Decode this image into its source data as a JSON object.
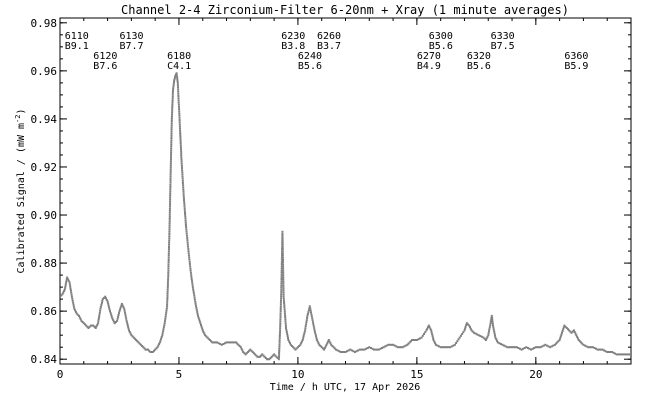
{
  "chart_data": {
    "type": "scatter",
    "title": "Channel 2-4   Zirconium-Filter   6-20nm + Xray   (1 minute averages)",
    "xlabel": "Time / h UTC, 17 Apr 2026",
    "ylabel": "Calibrated Signal / (mW m",
    "ylabel_sup": "-2",
    "ylabel_end": ")",
    "xlim": [
      0,
      24
    ],
    "ylim": [
      0.838,
      0.982
    ],
    "x_ticks": [
      {
        "value": 0,
        "label": "0"
      },
      {
        "value": 5,
        "label": "5"
      },
      {
        "value": 10,
        "label": "10"
      },
      {
        "value": 15,
        "label": "15"
      },
      {
        "value": 20,
        "label": "20"
      }
    ],
    "y_ticks": [
      {
        "value": 0.84,
        "label": "0.84"
      },
      {
        "value": 0.86,
        "label": "0.86"
      },
      {
        "value": 0.88,
        "label": "0.88"
      },
      {
        "value": 0.9,
        "label": "0.90"
      },
      {
        "value": 0.92,
        "label": "0.92"
      },
      {
        "value": 0.94,
        "label": "0.94"
      },
      {
        "value": 0.96,
        "label": "0.96"
      },
      {
        "value": 0.98,
        "label": "0.98"
      }
    ],
    "annotations": [
      {
        "x": 0.2,
        "line1": "6110",
        "line2": "B9.1",
        "row": 1
      },
      {
        "x": 1.4,
        "line1": "6120",
        "line2": "B7.6",
        "row": 2
      },
      {
        "x": 2.5,
        "line1": "6130",
        "line2": "B7.7",
        "row": 1
      },
      {
        "x": 4.5,
        "line1": "6180",
        "line2": "C4.1",
        "row": 2
      },
      {
        "x": 9.3,
        "line1": "6230",
        "line2": "B3.8",
        "row": 1
      },
      {
        "x": 10.0,
        "line1": "6240",
        "line2": "B5.6",
        "row": 2
      },
      {
        "x": 10.8,
        "line1": "6260",
        "line2": "B3.7",
        "row": 1
      },
      {
        "x": 15.0,
        "line1": "6270",
        "line2": "B4.9",
        "row": 2
      },
      {
        "x": 15.5,
        "line1": "6300",
        "line2": "B5.6",
        "row": 1
      },
      {
        "x": 17.1,
        "line1": "6320",
        "line2": "B5.6",
        "row": 2
      },
      {
        "x": 18.1,
        "line1": "6330",
        "line2": "B7.5",
        "row": 1
      },
      {
        "x": 21.2,
        "line1": "6360",
        "line2": "B5.9",
        "row": 2
      }
    ],
    "series": [
      {
        "color": "#808080",
        "points": [
          [
            0.0,
            0.866
          ],
          [
            0.1,
            0.867
          ],
          [
            0.2,
            0.869
          ],
          [
            0.3,
            0.874
          ],
          [
            0.4,
            0.872
          ],
          [
            0.5,
            0.866
          ],
          [
            0.6,
            0.861
          ],
          [
            0.7,
            0.859
          ],
          [
            0.8,
            0.858
          ],
          [
            0.9,
            0.856
          ],
          [
            1.0,
            0.855
          ],
          [
            1.1,
            0.854
          ],
          [
            1.2,
            0.853
          ],
          [
            1.3,
            0.854
          ],
          [
            1.4,
            0.854
          ],
          [
            1.5,
            0.853
          ],
          [
            1.6,
            0.855
          ],
          [
            1.7,
            0.861
          ],
          [
            1.8,
            0.865
          ],
          [
            1.9,
            0.866
          ],
          [
            2.0,
            0.864
          ],
          [
            2.1,
            0.86
          ],
          [
            2.2,
            0.857
          ],
          [
            2.3,
            0.855
          ],
          [
            2.4,
            0.856
          ],
          [
            2.5,
            0.86
          ],
          [
            2.6,
            0.863
          ],
          [
            2.7,
            0.861
          ],
          [
            2.8,
            0.856
          ],
          [
            2.9,
            0.852
          ],
          [
            3.0,
            0.85
          ],
          [
            3.1,
            0.849
          ],
          [
            3.2,
            0.848
          ],
          [
            3.3,
            0.847
          ],
          [
            3.4,
            0.846
          ],
          [
            3.5,
            0.845
          ],
          [
            3.6,
            0.844
          ],
          [
            3.7,
            0.844
          ],
          [
            3.8,
            0.843
          ],
          [
            3.9,
            0.843
          ],
          [
            4.0,
            0.844
          ],
          [
            4.1,
            0.845
          ],
          [
            4.2,
            0.847
          ],
          [
            4.3,
            0.85
          ],
          [
            4.4,
            0.855
          ],
          [
            4.5,
            0.862
          ],
          [
            4.55,
            0.875
          ],
          [
            4.6,
            0.893
          ],
          [
            4.65,
            0.917
          ],
          [
            4.7,
            0.94
          ],
          [
            4.75,
            0.952
          ],
          [
            4.8,
            0.956
          ],
          [
            4.85,
            0.958
          ],
          [
            4.9,
            0.959
          ],
          [
            4.95,
            0.955
          ],
          [
            5.0,
            0.945
          ],
          [
            5.05,
            0.935
          ],
          [
            5.1,
            0.924
          ],
          [
            5.2,
            0.908
          ],
          [
            5.3,
            0.895
          ],
          [
            5.4,
            0.885
          ],
          [
            5.5,
            0.876
          ],
          [
            5.6,
            0.869
          ],
          [
            5.7,
            0.863
          ],
          [
            5.8,
            0.858
          ],
          [
            5.9,
            0.855
          ],
          [
            6.0,
            0.852
          ],
          [
            6.1,
            0.85
          ],
          [
            6.2,
            0.849
          ],
          [
            6.3,
            0.848
          ],
          [
            6.4,
            0.847
          ],
          [
            6.5,
            0.847
          ],
          [
            6.6,
            0.847
          ],
          [
            6.8,
            0.846
          ],
          [
            7.0,
            0.847
          ],
          [
            7.2,
            0.847
          ],
          [
            7.4,
            0.847
          ],
          [
            7.5,
            0.846
          ],
          [
            7.6,
            0.845
          ],
          [
            7.7,
            0.843
          ],
          [
            7.8,
            0.842
          ],
          [
            7.9,
            0.843
          ],
          [
            8.0,
            0.844
          ],
          [
            8.1,
            0.843
          ],
          [
            8.2,
            0.842
          ],
          [
            8.3,
            0.841
          ],
          [
            8.4,
            0.841
          ],
          [
            8.5,
            0.842
          ],
          [
            8.6,
            0.841
          ],
          [
            8.7,
            0.84
          ],
          [
            8.8,
            0.84
          ],
          [
            8.9,
            0.841
          ],
          [
            9.0,
            0.842
          ],
          [
            9.1,
            0.841
          ],
          [
            9.2,
            0.84
          ],
          [
            9.25,
            0.852
          ],
          [
            9.3,
            0.868
          ],
          [
            9.35,
            0.893
          ],
          [
            9.4,
            0.866
          ],
          [
            9.5,
            0.853
          ],
          [
            9.6,
            0.848
          ],
          [
            9.7,
            0.846
          ],
          [
            9.8,
            0.845
          ],
          [
            9.9,
            0.844
          ],
          [
            10.0,
            0.845
          ],
          [
            10.1,
            0.846
          ],
          [
            10.2,
            0.848
          ],
          [
            10.3,
            0.852
          ],
          [
            10.4,
            0.858
          ],
          [
            10.5,
            0.862
          ],
          [
            10.6,
            0.857
          ],
          [
            10.7,
            0.852
          ],
          [
            10.8,
            0.848
          ],
          [
            10.9,
            0.846
          ],
          [
            11.0,
            0.845
          ],
          [
            11.1,
            0.844
          ],
          [
            11.2,
            0.846
          ],
          [
            11.3,
            0.848
          ],
          [
            11.4,
            0.846
          ],
          [
            11.5,
            0.845
          ],
          [
            11.6,
            0.844
          ],
          [
            11.8,
            0.843
          ],
          [
            12.0,
            0.843
          ],
          [
            12.2,
            0.844
          ],
          [
            12.4,
            0.843
          ],
          [
            12.6,
            0.844
          ],
          [
            12.8,
            0.844
          ],
          [
            13.0,
            0.845
          ],
          [
            13.2,
            0.844
          ],
          [
            13.4,
            0.844
          ],
          [
            13.6,
            0.845
          ],
          [
            13.8,
            0.846
          ],
          [
            14.0,
            0.846
          ],
          [
            14.2,
            0.845
          ],
          [
            14.4,
            0.845
          ],
          [
            14.6,
            0.846
          ],
          [
            14.8,
            0.848
          ],
          [
            15.0,
            0.848
          ],
          [
            15.2,
            0.849
          ],
          [
            15.4,
            0.852
          ],
          [
            15.5,
            0.854
          ],
          [
            15.6,
            0.852
          ],
          [
            15.7,
            0.848
          ],
          [
            15.8,
            0.846
          ],
          [
            16.0,
            0.845
          ],
          [
            16.2,
            0.845
          ],
          [
            16.4,
            0.845
          ],
          [
            16.6,
            0.846
          ],
          [
            16.8,
            0.849
          ],
          [
            17.0,
            0.852
          ],
          [
            17.1,
            0.855
          ],
          [
            17.2,
            0.854
          ],
          [
            17.3,
            0.852
          ],
          [
            17.4,
            0.851
          ],
          [
            17.6,
            0.85
          ],
          [
            17.8,
            0.849
          ],
          [
            17.9,
            0.848
          ],
          [
            18.0,
            0.85
          ],
          [
            18.1,
            0.855
          ],
          [
            18.15,
            0.858
          ],
          [
            18.2,
            0.854
          ],
          [
            18.3,
            0.849
          ],
          [
            18.4,
            0.847
          ],
          [
            18.6,
            0.846
          ],
          [
            18.8,
            0.845
          ],
          [
            19.0,
            0.845
          ],
          [
            19.2,
            0.845
          ],
          [
            19.4,
            0.844
          ],
          [
            19.6,
            0.845
          ],
          [
            19.8,
            0.844
          ],
          [
            20.0,
            0.845
          ],
          [
            20.2,
            0.845
          ],
          [
            20.4,
            0.846
          ],
          [
            20.6,
            0.845
          ],
          [
            20.8,
            0.846
          ],
          [
            21.0,
            0.848
          ],
          [
            21.1,
            0.851
          ],
          [
            21.2,
            0.854
          ],
          [
            21.3,
            0.853
          ],
          [
            21.4,
            0.852
          ],
          [
            21.5,
            0.851
          ],
          [
            21.6,
            0.852
          ],
          [
            21.7,
            0.85
          ],
          [
            21.8,
            0.848
          ],
          [
            21.9,
            0.847
          ],
          [
            22.0,
            0.846
          ],
          [
            22.2,
            0.845
          ],
          [
            22.4,
            0.845
          ],
          [
            22.6,
            0.844
          ],
          [
            22.8,
            0.844
          ],
          [
            23.0,
            0.843
          ],
          [
            23.2,
            0.843
          ],
          [
            23.4,
            0.842
          ],
          [
            23.6,
            0.842
          ],
          [
            23.8,
            0.842
          ],
          [
            24.0,
            0.842
          ]
        ]
      }
    ]
  }
}
